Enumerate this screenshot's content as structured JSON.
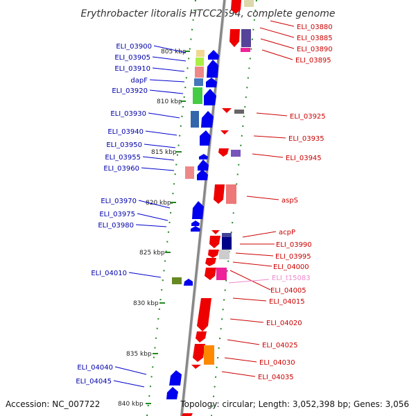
{
  "title": "Erythrobacter litoralis HTCC2594, complete genome",
  "footer": {
    "accession": "Accession: NC_007722",
    "topology": "Topology: circular; Length: 3,052,398 bp; Genes: 3,056"
  },
  "scale_marks": [
    "805 kbp",
    "810 kbp",
    "815 kbp",
    "820 kbp",
    "825 kbp",
    "830 kbp",
    "835 kbp",
    "840 kbp"
  ],
  "left_labels": [
    "ELI_03900",
    "ELI_03905",
    "ELI_03910",
    "dapF",
    "ELI_03920",
    "ELI_03930",
    "ELI_03940",
    "ELI_03950",
    "ELI_03955",
    "ELI_03960",
    "ELI_03970",
    "ELI_03975",
    "ELI_03980",
    "ELI_04010",
    "ELI_04040",
    "ELI_04045"
  ],
  "right_labels": [
    "ELI_03880",
    "ELI_03885",
    "ELI_03890",
    "ELI_03895",
    "ELI_03925",
    "ELI_03935",
    "ELI_03945",
    "aspS",
    "acpP",
    "ELI_03990",
    "ELI_03995",
    "ELI_04000",
    "ELI_t15083",
    "ELI_04005",
    "ELI_04015",
    "ELI_04020",
    "ELI_04025",
    "ELI_04030",
    "ELI_04035"
  ],
  "colors": {
    "forward": "#0000ee",
    "reverse": "#ee0000",
    "tick": "#228822",
    "backbone": "#999999"
  }
}
